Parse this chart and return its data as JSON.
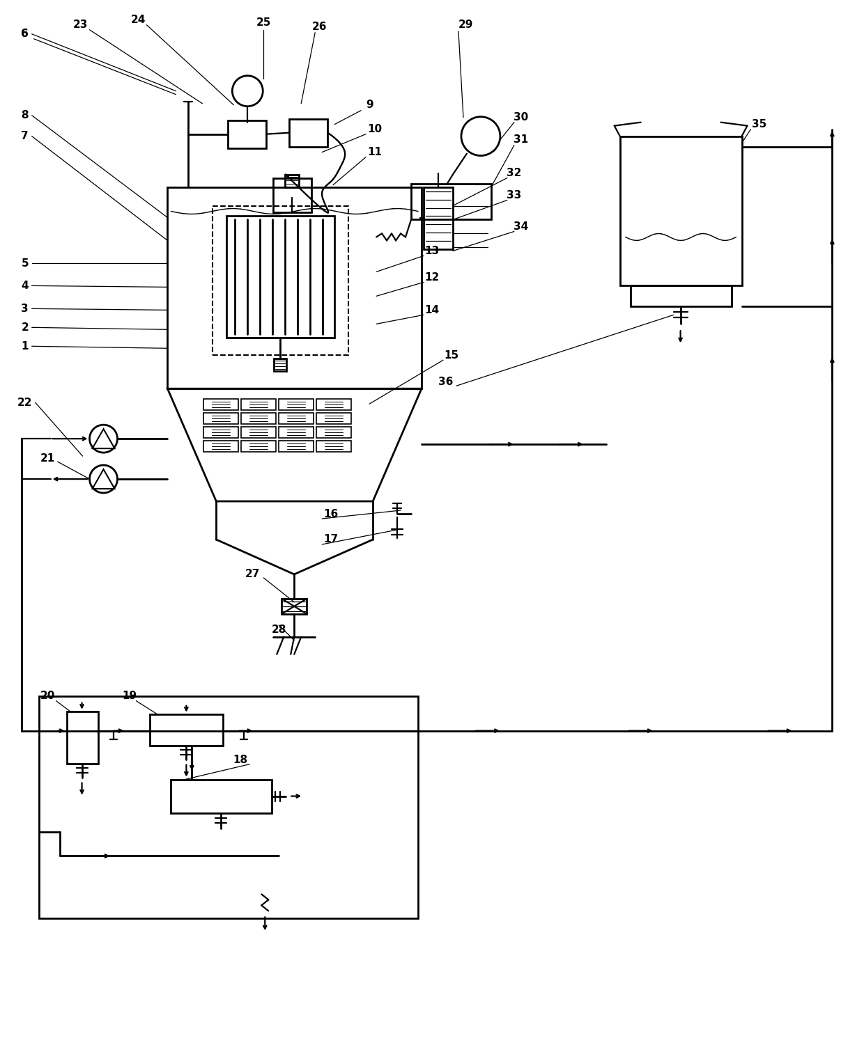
{
  "fig_width": 12.4,
  "fig_height": 15.01,
  "bg_color": "#ffffff",
  "lc": "#000000",
  "lw": 1.6,
  "lw2": 2.0
}
